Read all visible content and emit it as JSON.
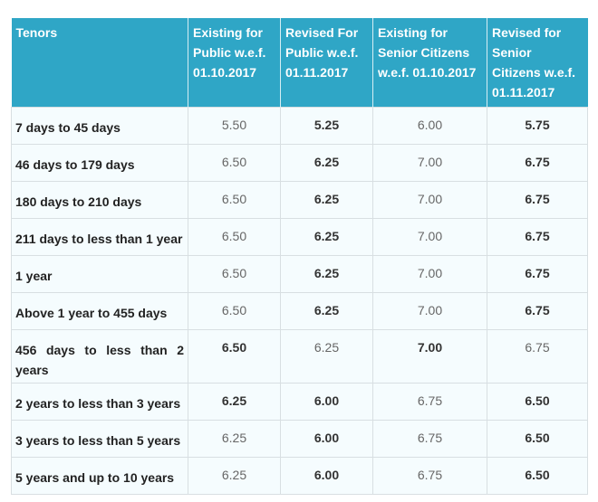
{
  "headers": [
    "Tenors",
    "Existing for Public w.e.f. 01.10.2017",
    "Revised For Public w.e.f. 01.11.2017",
    "Existing for Senior Citizens w.e.f. 01.10.2017",
    "Revised for Senior Citizens w.e.f. 01.11.2017"
  ],
  "rows": [
    {
      "tenor": "7 days to 45 days",
      "values": [
        "5.50",
        "5.25",
        "6.00",
        "5.75"
      ],
      "bold": [
        false,
        true,
        false,
        true
      ]
    },
    {
      "tenor": "46 days to 179 days",
      "values": [
        "6.50",
        "6.25",
        "7.00",
        "6.75"
      ],
      "bold": [
        false,
        true,
        false,
        true
      ]
    },
    {
      "tenor": "180 days to 210 days",
      "values": [
        "6.50",
        "6.25",
        "7.00",
        "6.75"
      ],
      "bold": [
        false,
        true,
        false,
        true
      ]
    },
    {
      "tenor": "211 days to less than 1 year",
      "values": [
        "6.50",
        "6.25",
        "7.00",
        "6.75"
      ],
      "bold": [
        false,
        true,
        false,
        true
      ]
    },
    {
      "tenor": "1 year",
      "values": [
        "6.50",
        "6.25",
        "7.00",
        "6.75"
      ],
      "bold": [
        false,
        true,
        false,
        true
      ]
    },
    {
      "tenor": "Above 1 year to 455 days",
      "values": [
        "6.50",
        "6.25",
        "7.00",
        "6.75"
      ],
      "bold": [
        false,
        true,
        false,
        true
      ]
    },
    {
      "tenor": "456 days to less than 2 years",
      "values": [
        "6.50",
        "6.25",
        "7.00",
        "6.75"
      ],
      "bold": [
        true,
        false,
        true,
        false
      ]
    },
    {
      "tenor": "2 years to less than 3 years",
      "values": [
        "6.25",
        "6.00",
        "6.75",
        "6.50"
      ],
      "bold": [
        true,
        true,
        false,
        true
      ]
    },
    {
      "tenor": "3 years to less than 5 years",
      "values": [
        "6.25",
        "6.00",
        "6.75",
        "6.50"
      ],
      "bold": [
        false,
        true,
        false,
        true
      ]
    },
    {
      "tenor": "5 years and up to 10 years",
      "values": [
        "6.25",
        "6.00",
        "6.75",
        "6.50"
      ],
      "bold": [
        false,
        true,
        false,
        true
      ]
    }
  ]
}
